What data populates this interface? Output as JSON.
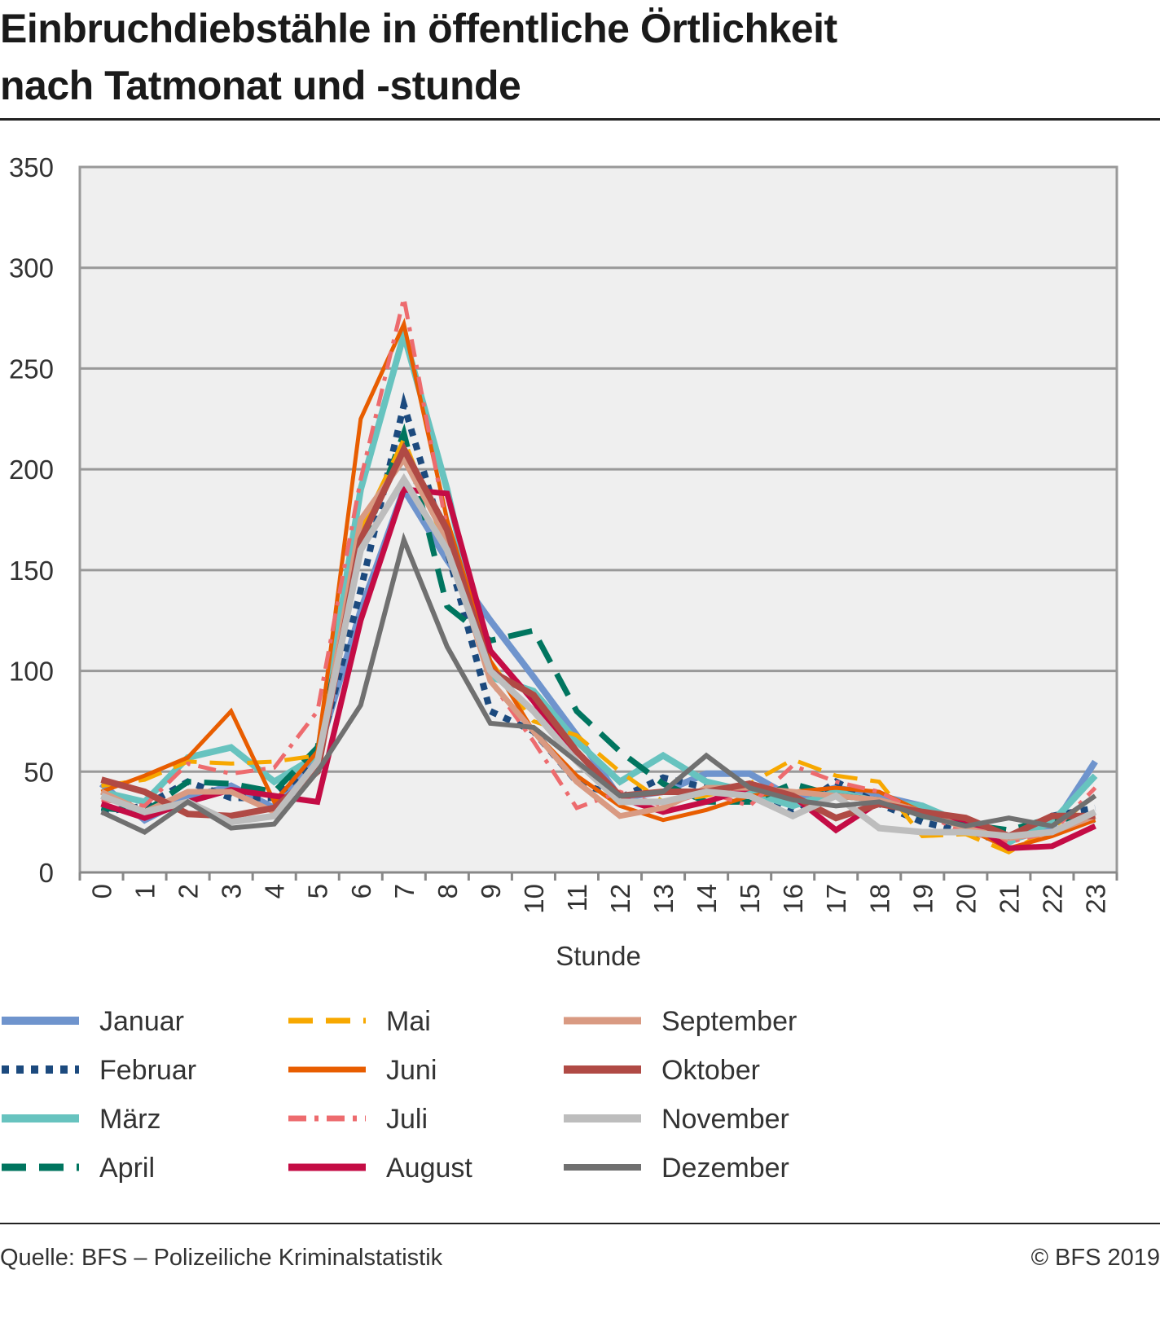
{
  "title_line1": "Einbruchdiebstähle in öffentliche Örtlichkeit",
  "title_line2": "nach Tatmonat und -stunde",
  "source": "Quelle: BFS – Polizeiliche Kriminalstatistik",
  "copyright": "© BFS 2019",
  "chart_data": {
    "type": "line",
    "title": "Einbruchdiebstähle in öffentliche Örtlichkeit nach Tatmonat und -stunde",
    "xlabel": "Stunde",
    "ylabel": "",
    "ylim": [
      0,
      350
    ],
    "yticks": [
      0,
      50,
      100,
      150,
      200,
      250,
      300,
      350
    ],
    "grid": true,
    "legend_position": "bottom",
    "x": [
      0,
      1,
      2,
      3,
      4,
      5,
      6,
      7,
      8,
      9,
      10,
      11,
      12,
      13,
      14,
      15,
      16,
      17,
      18,
      19,
      20,
      21,
      22,
      23
    ],
    "series": [
      {
        "name": "Januar",
        "color": "#6f94cd",
        "style": "solid",
        "width": 8,
        "values": [
          44,
          26,
          37,
          43,
          32,
          58,
          130,
          190,
          155,
          125,
          97,
          68,
          37,
          40,
          49,
          49,
          37,
          42,
          38,
          33,
          22,
          16,
          22,
          55
        ]
      },
      {
        "name": "Februar",
        "color": "#1c4a7e",
        "style": "dotted",
        "width": 8,
        "values": [
          30,
          33,
          45,
          37,
          37,
          56,
          140,
          232,
          160,
          80,
          70,
          45,
          37,
          47,
          42,
          40,
          30,
          45,
          34,
          25,
          20,
          15,
          28,
          32
        ]
      },
      {
        "name": "März",
        "color": "#67c3bf",
        "style": "solid",
        "width": 8,
        "values": [
          40,
          35,
          57,
          62,
          45,
          58,
          190,
          267,
          190,
          97,
          90,
          65,
          45,
          58,
          45,
          40,
          33,
          40,
          35,
          33,
          24,
          15,
          25,
          48
        ]
      },
      {
        "name": "April",
        "color": "#00755f",
        "style": "dashed",
        "width": 7,
        "values": [
          32,
          30,
          45,
          44,
          40,
          62,
          160,
          218,
          132,
          115,
          120,
          80,
          60,
          44,
          35,
          35,
          44,
          38,
          36,
          28,
          24,
          21,
          27,
          26
        ]
      },
      {
        "name": "Mai",
        "color": "#f7a800",
        "style": "dashed",
        "width": 5,
        "values": [
          43,
          46,
          55,
          54,
          55,
          58,
          170,
          215,
          160,
          105,
          75,
          68,
          50,
          35,
          38,
          44,
          56,
          48,
          45,
          18,
          19,
          10,
          22,
          38
        ]
      },
      {
        "name": "Juni",
        "color": "#e85d00",
        "style": "solid",
        "width": 5,
        "values": [
          40,
          48,
          57,
          80,
          35,
          60,
          225,
          272,
          175,
          105,
          70,
          48,
          33,
          26,
          31,
          38,
          40,
          42,
          40,
          30,
          22,
          12,
          18,
          26
        ]
      },
      {
        "name": "Juli",
        "color": "#ed6b6e",
        "style": "dashdot",
        "width": 5,
        "values": [
          36,
          33,
          54,
          49,
          52,
          80,
          195,
          285,
          170,
          95,
          65,
          32,
          40,
          33,
          40,
          33,
          53,
          45,
          40,
          29,
          20,
          15,
          20,
          42
        ]
      },
      {
        "name": "August",
        "color": "#c40c45",
        "style": "solid",
        "width": 7,
        "values": [
          34,
          27,
          35,
          41,
          38,
          35,
          125,
          190,
          188,
          110,
          85,
          55,
          37,
          30,
          35,
          42,
          38,
          21,
          35,
          30,
          26,
          12,
          13,
          23
        ]
      },
      {
        "name": "September",
        "color": "#d99a82",
        "style": "solid",
        "width": 7,
        "values": [
          40,
          30,
          40,
          40,
          30,
          52,
          175,
          205,
          165,
          95,
          70,
          45,
          28,
          32,
          42,
          42,
          40,
          38,
          36,
          30,
          22,
          17,
          20,
          28
        ]
      },
      {
        "name": "Oktober",
        "color": "#b04a45",
        "style": "solid",
        "width": 8,
        "values": [
          46,
          40,
          29,
          28,
          32,
          50,
          165,
          210,
          170,
          100,
          88,
          60,
          38,
          40,
          40,
          44,
          38,
          27,
          34,
          30,
          27,
          18,
          28,
          28
        ]
      },
      {
        "name": "November",
        "color": "#bdbdbd",
        "style": "solid",
        "width": 8,
        "values": [
          38,
          30,
          35,
          25,
          28,
          55,
          160,
          195,
          160,
          100,
          80,
          55,
          35,
          35,
          40,
          38,
          28,
          38,
          22,
          20,
          20,
          18,
          20,
          30
        ]
      },
      {
        "name": "Dezember",
        "color": "#707070",
        "style": "solid",
        "width": 6,
        "values": [
          30,
          20,
          35,
          22,
          24,
          50,
          83,
          165,
          112,
          74,
          72,
          55,
          38,
          40,
          58,
          42,
          36,
          33,
          35,
          28,
          23,
          27,
          23,
          38
        ]
      }
    ]
  }
}
